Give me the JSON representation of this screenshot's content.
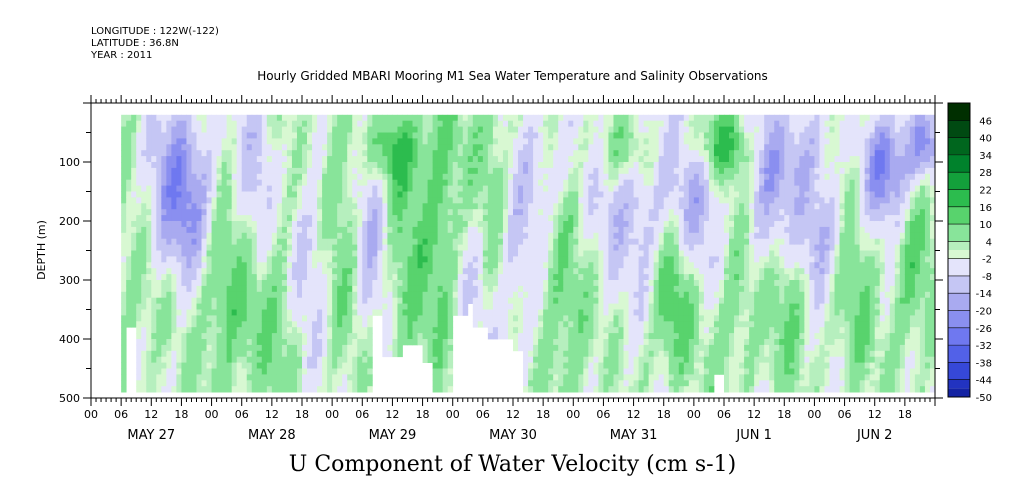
{
  "meta": {
    "longitude": "LONGITUDE : 122W(-122)",
    "latitude": "LATITUDE : 36.8N",
    "year": "YEAR : 2011"
  },
  "chart_data": {
    "type": "heatmap",
    "title": "Hourly Gridded MBARI Mooring M1 Sea Water Temperature and Salinity Observations",
    "bottom_title": "U Component of Water Velocity (cm s-1)",
    "ylabel": "DEPTH (m)",
    "ylim": [
      500,
      0
    ],
    "y_reversed": true,
    "y_ticks": [
      "100",
      "200",
      "300",
      "400",
      "500"
    ],
    "x_range_hours": [
      0,
      168
    ],
    "x_hour_tick_labels": [
      "00",
      "06",
      "12",
      "18",
      "00",
      "06",
      "12",
      "18",
      "00",
      "06",
      "12",
      "18",
      "00",
      "06",
      "12",
      "18",
      "00",
      "06",
      "12",
      "18",
      "00",
      "06",
      "12",
      "18",
      "00",
      "06",
      "12",
      "18"
    ],
    "x_day_labels": [
      "MAY 27",
      "MAY 28",
      "MAY 29",
      "MAY 30",
      "MAY 31",
      "JUN  1",
      "JUN  2"
    ],
    "data_coverage": {
      "time_start_hour": 6,
      "time_end_hour": 168,
      "depth_top": 20,
      "depth_bottom": 490
    },
    "colorbar": {
      "labels": [
        "46",
        "40",
        "34",
        "28",
        "22",
        "16",
        "10",
        "4",
        "-2",
        "-8",
        "-14",
        "-20",
        "-26",
        "-32",
        "-38",
        "-44",
        "-50"
      ],
      "min": -50,
      "max": 52,
      "colors": [
        "#002f00",
        "#004a12",
        "#00661e",
        "#00822c",
        "#13a03b",
        "#2cbc4e",
        "#58d36d",
        "#88e49a",
        "#b6efbe",
        "#d8f8d2",
        "#e4e4fb",
        "#c5c6f4",
        "#a9aaf0",
        "#8a8ff0",
        "#6f78f0",
        "#5261e8",
        "#3648d8",
        "#2233c0",
        "#1423a3",
        "#0a1586",
        "#04096a",
        "#000050"
      ],
      "color_stops": [
        52,
        46,
        40,
        34,
        28,
        22,
        16,
        10,
        4,
        1,
        -2,
        -8,
        -14,
        -20,
        -26,
        -32,
        -38,
        -44,
        -47,
        -50,
        -53,
        -56
      ]
    },
    "features": [
      {
        "t": 10,
        "d": 280,
        "v": 8,
        "st": 5,
        "sd": 120
      },
      {
        "t": 15,
        "d": 180,
        "v": -12,
        "st": 4,
        "sd": 90
      },
      {
        "t": 20,
        "d": 150,
        "v": -18,
        "st": 5,
        "sd": 110
      },
      {
        "t": 25,
        "d": 260,
        "v": 12,
        "st": 3,
        "sd": 140
      },
      {
        "t": 30,
        "d": 350,
        "v": 10,
        "st": 3,
        "sd": 100
      },
      {
        "t": 33,
        "d": 150,
        "v": -10,
        "st": 3,
        "sd": 120
      },
      {
        "t": 38,
        "d": 300,
        "v": 12,
        "st": 3,
        "sd": 150
      },
      {
        "t": 43,
        "d": 260,
        "v": -12,
        "st": 4,
        "sd": 120
      },
      {
        "t": 50,
        "d": 200,
        "v": 12,
        "st": 3,
        "sd": 160
      },
      {
        "t": 56,
        "d": 180,
        "v": -14,
        "st": 3,
        "sd": 150
      },
      {
        "t": 60,
        "d": 80,
        "v": 18,
        "st": 4,
        "sd": 50
      },
      {
        "t": 62,
        "d": 300,
        "v": 10,
        "st": 3,
        "sd": 140
      },
      {
        "t": 70,
        "d": 200,
        "v": 14,
        "st": 3,
        "sd": 160
      },
      {
        "t": 75,
        "d": 300,
        "v": -8,
        "st": 3,
        "sd": 120
      },
      {
        "t": 80,
        "d": 150,
        "v": 12,
        "st": 3,
        "sd": 150
      },
      {
        "t": 84,
        "d": 250,
        "v": -12,
        "st": 4,
        "sd": 140
      },
      {
        "t": 92,
        "d": 100,
        "v": -8,
        "st": 4,
        "sd": 60
      },
      {
        "t": 95,
        "d": 300,
        "v": 14,
        "st": 4,
        "sd": 150
      },
      {
        "t": 99,
        "d": 180,
        "v": -10,
        "st": 4,
        "sd": 130
      },
      {
        "t": 105,
        "d": 80,
        "v": 14,
        "st": 5,
        "sd": 50
      },
      {
        "t": 110,
        "d": 150,
        "v": -12,
        "st": 5,
        "sd": 120
      },
      {
        "t": 116,
        "d": 330,
        "v": 18,
        "st": 3,
        "sd": 90
      },
      {
        "t": 121,
        "d": 180,
        "v": -14,
        "st": 4,
        "sd": 120
      },
      {
        "t": 126,
        "d": 70,
        "v": 18,
        "st": 5,
        "sd": 40
      },
      {
        "t": 128,
        "d": 300,
        "v": 10,
        "st": 4,
        "sd": 140
      },
      {
        "t": 135,
        "d": 150,
        "v": -16,
        "st": 4,
        "sd": 120
      },
      {
        "t": 139,
        "d": 300,
        "v": 14,
        "st": 3,
        "sd": 110
      },
      {
        "t": 144,
        "d": 80,
        "v": -12,
        "st": 6,
        "sd": 50
      },
      {
        "t": 145,
        "d": 210,
        "v": -18,
        "st": 4,
        "sd": 80
      },
      {
        "t": 150,
        "d": 100,
        "v": 14,
        "st": 4,
        "sd": 60
      },
      {
        "t": 152,
        "d": 300,
        "v": 10,
        "st": 3,
        "sd": 130
      },
      {
        "t": 156,
        "d": 100,
        "v": -18,
        "st": 3,
        "sd": 60
      },
      {
        "t": 160,
        "d": 130,
        "v": -20,
        "st": 3,
        "sd": 70
      },
      {
        "t": 163,
        "d": 250,
        "v": 12,
        "st": 3,
        "sd": 130
      },
      {
        "t": 166,
        "d": 70,
        "v": -20,
        "st": 3,
        "sd": 40
      }
    ],
    "missing_regions": [
      {
        "t0": 7.5,
        "t1": 9.5,
        "d0": 380,
        "d1": 490
      },
      {
        "t0": 56,
        "t1": 58,
        "d0": 360,
        "d1": 490
      },
      {
        "t0": 58,
        "t1": 62,
        "d0": 435,
        "d1": 490
      },
      {
        "t0": 62,
        "t1": 66,
        "d0": 410,
        "d1": 490
      },
      {
        "t0": 66,
        "t1": 68,
        "d0": 440,
        "d1": 490
      },
      {
        "t0": 72,
        "t1": 75,
        "d0": 365,
        "d1": 490
      },
      {
        "t0": 75,
        "t1": 76.5,
        "d0": 340,
        "d1": 490
      },
      {
        "t0": 76.5,
        "t1": 79,
        "d0": 385,
        "d1": 490
      },
      {
        "t0": 79,
        "t1": 84,
        "d0": 405,
        "d1": 490
      },
      {
        "t0": 84,
        "t1": 86,
        "d0": 420,
        "d1": 490
      },
      {
        "t0": 124.5,
        "t1": 126,
        "d0": 460,
        "d1": 490
      }
    ]
  }
}
